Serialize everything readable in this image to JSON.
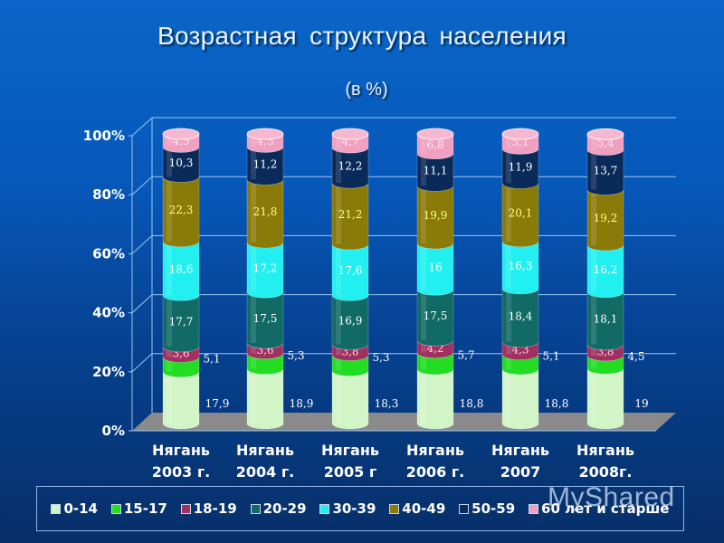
{
  "header": {
    "title": "Возрастная структура  населения",
    "subtitle": "(в %)"
  },
  "colors": {
    "0-14": "#d2f5c8",
    "15-17": "#22dd22",
    "18-19": "#a03060",
    "20-29": "#116a66",
    "30-39": "#22f0f0",
    "40-49": "#8a7a08",
    "50-59": "#0a2a5a",
    "60+": "#f0a0c0"
  },
  "legend": {
    "items": [
      {
        "key": "0-14",
        "label": "0-14",
        "color": "#d2f5c8"
      },
      {
        "key": "15-17",
        "label": "15-17",
        "color": "#22dd22"
      },
      {
        "key": "18-19",
        "label": "18-19",
        "color": "#a03060"
      },
      {
        "key": "20-29",
        "label": "20-29",
        "color": "#116a66"
      },
      {
        "key": "30-39",
        "label": "30-39",
        "color": "#22f0f0"
      },
      {
        "key": "40-49",
        "label": "40-49",
        "color": "#8a7a08"
      },
      {
        "key": "50-59",
        "label": "50-59",
        "color": "#0a2a5a"
      },
      {
        "key": "60+",
        "label": "60 лет и старше",
        "color": "#f0a0c0"
      }
    ]
  },
  "watermark": "MyShared",
  "chart_data": {
    "type": "bar",
    "stacked": true,
    "percent": true,
    "title": "Возрастная структура населения",
    "subtitle": "(в %)",
    "xlabel": "",
    "ylabel": "",
    "ylim": [
      0,
      100
    ],
    "yticks": [
      "0%",
      "20%",
      "40%",
      "60%",
      "80%",
      "100%"
    ],
    "grid": true,
    "legend_position": "bottom",
    "categories": [
      [
        "Нягань",
        "2003 г."
      ],
      [
        "Нягань",
        "2004 г."
      ],
      [
        "Нягань",
        "2005 г"
      ],
      [
        "Нягань",
        "2006 г."
      ],
      [
        "Нягань",
        "2007"
      ],
      [
        "Нягань",
        "2008г."
      ]
    ],
    "series": [
      {
        "name": "0-14",
        "values": [
          17.9,
          18.9,
          18.3,
          18.8,
          18.8,
          19
        ],
        "labels": [
          "17,9",
          "18,9",
          "18,3",
          "18,8",
          "18,8",
          "19"
        ]
      },
      {
        "name": "15-17",
        "values": [
          5.1,
          5.3,
          5.3,
          5.7,
          5.1,
          4.5
        ],
        "labels": [
          "5,1",
          "5,3",
          "5,3",
          "5,7",
          "5,1",
          "4,5"
        ]
      },
      {
        "name": "18-19",
        "values": [
          3.6,
          3.6,
          3.8,
          4.2,
          4.3,
          3.8
        ],
        "labels": [
          "3,6",
          "3,6",
          "3,8",
          "4,2",
          "4,3",
          "3,8"
        ]
      },
      {
        "name": "20-29",
        "values": [
          17.7,
          17.5,
          16.9,
          17.5,
          18.4,
          18.1
        ],
        "labels": [
          "17,7",
          "17,5",
          "16,9",
          "17,5",
          "18,4",
          "18,1"
        ]
      },
      {
        "name": "30-39",
        "values": [
          18.6,
          17.2,
          17.6,
          16,
          16.3,
          16.2
        ],
        "labels": [
          "18,6",
          "17,2",
          "17,6",
          "16",
          "16,3",
          "16,2"
        ]
      },
      {
        "name": "40-49",
        "values": [
          22.3,
          21.8,
          21.2,
          19.9,
          20.1,
          19.2
        ],
        "labels": [
          "22,3",
          "21,8",
          "21,2",
          "19,9",
          "20,1",
          "19,2"
        ]
      },
      {
        "name": "50-59",
        "values": [
          10.3,
          11.2,
          12.2,
          11.1,
          11.9,
          13.7
        ],
        "labels": [
          "10,3",
          "11,2",
          "12,2",
          "11,1",
          "11,9",
          "13,7"
        ]
      },
      {
        "name": "60 лет и старше",
        "values": [
          4.5,
          4.5,
          4.7,
          6.8,
          5.1,
          5.4
        ],
        "labels": [
          "4,5",
          "4,5",
          "4,7",
          "6,8",
          "5,1",
          "5,4"
        ]
      }
    ]
  }
}
